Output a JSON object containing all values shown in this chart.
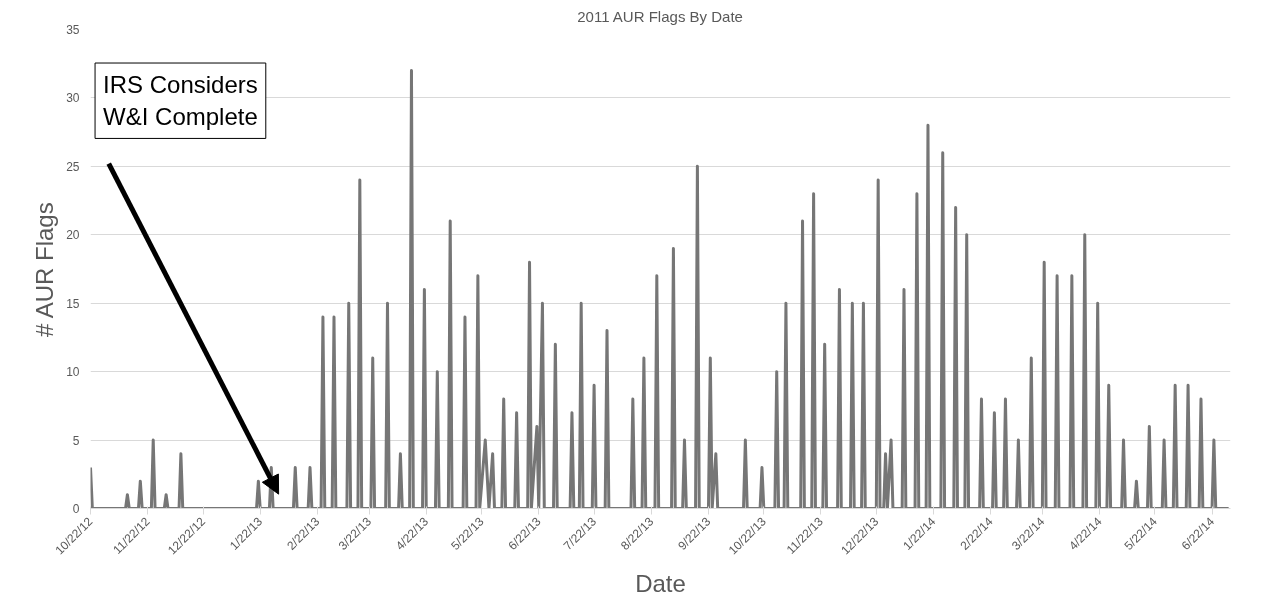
{
  "chart_data": {
    "type": "line",
    "title": "2011 AUR Flags By Date",
    "xlabel": "Date",
    "ylabel": "# AUR Flags",
    "xlim": [
      "2012-10-22",
      "2014-07-02"
    ],
    "ylim": [
      0,
      35
    ],
    "yticks": [
      0,
      5,
      10,
      15,
      20,
      25,
      30,
      35
    ],
    "xticks": [
      {
        "value": "2012-10-22",
        "label": "10/22/12"
      },
      {
        "value": "2012-11-22",
        "label": "11/22/12"
      },
      {
        "value": "2012-12-22",
        "label": "12/22/12"
      },
      {
        "value": "2013-01-22",
        "label": "1/22/13"
      },
      {
        "value": "2013-02-22",
        "label": "2/22/13"
      },
      {
        "value": "2013-03-22",
        "label": "3/22/13"
      },
      {
        "value": "2013-04-22",
        "label": "4/22/13"
      },
      {
        "value": "2013-05-22",
        "label": "5/22/13"
      },
      {
        "value": "2013-06-22",
        "label": "6/22/13"
      },
      {
        "value": "2013-07-22",
        "label": "7/22/13"
      },
      {
        "value": "2013-08-22",
        "label": "8/22/13"
      },
      {
        "value": "2013-09-22",
        "label": "9/22/13"
      },
      {
        "value": "2013-10-22",
        "label": "10/22/13"
      },
      {
        "value": "2013-11-22",
        "label": "11/22/13"
      },
      {
        "value": "2013-12-22",
        "label": "12/22/13"
      },
      {
        "value": "2014-01-22",
        "label": "1/22/14"
      },
      {
        "value": "2014-02-22",
        "label": "2/22/14"
      },
      {
        "value": "2014-03-22",
        "label": "3/22/14"
      },
      {
        "value": "2014-04-22",
        "label": "4/22/14"
      },
      {
        "value": "2014-05-22",
        "label": "5/22/14"
      },
      {
        "value": "2014-06-22",
        "label": "6/22/14"
      }
    ],
    "grid": "y",
    "marker": "none",
    "line_style": "solid",
    "annotations": [
      "IRS Considers\nW&I Complete"
    ],
    "series": [
      {
        "color": "#767676",
        "x": [
          "2012-10-22",
          "2012-10-23",
          "2012-11-10",
          "2012-11-11",
          "2012-11-12",
          "2012-11-17",
          "2012-11-18",
          "2012-11-19",
          "2012-11-24",
          "2012-11-25",
          "2012-11-26",
          "2012-12-01",
          "2012-12-02",
          "2012-12-03",
          "2012-12-09",
          "2012-12-10",
          "2012-12-11",
          "2013-01-20",
          "2013-01-21",
          "2013-01-22",
          "2013-01-27",
          "2013-01-28",
          "2013-01-29",
          "2013-02-09",
          "2013-02-10",
          "2013-02-11",
          "2013-02-17",
          "2013-02-18",
          "2013-02-19",
          "2013-02-24",
          "2013-02-25",
          "2013-02-26",
          "2013-03-02",
          "2013-03-03",
          "2013-03-04",
          "2013-03-10",
          "2013-03-11",
          "2013-03-12",
          "2013-03-16",
          "2013-03-17",
          "2013-03-18",
          "2013-03-23",
          "2013-03-24",
          "2013-03-25",
          "2013-03-31",
          "2013-04-01",
          "2013-04-02",
          "2013-04-07",
          "2013-04-08",
          "2013-04-09",
          "2013-04-13",
          "2013-04-14",
          "2013-04-15",
          "2013-04-20",
          "2013-04-21",
          "2013-04-22",
          "2013-04-27",
          "2013-04-28",
          "2013-04-29",
          "2013-05-04",
          "2013-05-05",
          "2013-05-06",
          "2013-05-12",
          "2013-05-13",
          "2013-05-14",
          "2013-05-19",
          "2013-05-20",
          "2013-05-21",
          "2013-05-24",
          "2013-05-26",
          "2013-05-28",
          "2013-05-29",
          "2013-06-02",
          "2013-06-03",
          "2013-06-04",
          "2013-06-09",
          "2013-06-10",
          "2013-06-11",
          "2013-06-16",
          "2013-06-17",
          "2013-06-18",
          "2013-06-21",
          "2013-06-22",
          "2013-06-24",
          "2013-06-25",
          "2013-06-30",
          "2013-07-01",
          "2013-07-02",
          "2013-07-09",
          "2013-07-10",
          "2013-07-11",
          "2013-07-14",
          "2013-07-15",
          "2013-07-16",
          "2013-07-21",
          "2013-07-22",
          "2013-07-23",
          "2013-07-28",
          "2013-07-29",
          "2013-07-30",
          "2013-08-11",
          "2013-08-12",
          "2013-08-13",
          "2013-08-17",
          "2013-08-18",
          "2013-08-19",
          "2013-08-24",
          "2013-08-25",
          "2013-08-26",
          "2013-09-02",
          "2013-09-03",
          "2013-09-04",
          "2013-09-08",
          "2013-09-09",
          "2013-09-10",
          "2013-09-15",
          "2013-09-16",
          "2013-09-17",
          "2013-09-22",
          "2013-09-23",
          "2013-09-24",
          "2013-09-26",
          "2013-09-27",
          "2013-10-11",
          "2013-10-12",
          "2013-10-13",
          "2013-10-20",
          "2013-10-21",
          "2013-10-22",
          "2013-10-28",
          "2013-10-29",
          "2013-10-30",
          "2013-11-02",
          "2013-11-03",
          "2013-11-04",
          "2013-11-11",
          "2013-11-12",
          "2013-11-13",
          "2013-11-17",
          "2013-11-18",
          "2013-11-19",
          "2013-11-23",
          "2013-11-24",
          "2013-11-25",
          "2013-12-01",
          "2013-12-02",
          "2013-12-03",
          "2013-12-08",
          "2013-12-09",
          "2013-12-10",
          "2013-12-14",
          "2013-12-15",
          "2013-12-16",
          "2013-12-22",
          "2013-12-23",
          "2013-12-24",
          "2013-12-26",
          "2013-12-27",
          "2013-12-28",
          "2013-12-30",
          "2013-12-31",
          "2014-01-05",
          "2014-01-06",
          "2014-01-07",
          "2014-01-12",
          "2014-01-13",
          "2014-01-14",
          "2014-01-18",
          "2014-01-19",
          "2014-01-20",
          "2014-01-26",
          "2014-01-27",
          "2014-01-28",
          "2014-02-02",
          "2014-02-03",
          "2014-02-04",
          "2014-02-08",
          "2014-02-09",
          "2014-02-10",
          "2014-02-16",
          "2014-02-17",
          "2014-02-18",
          "2014-02-23",
          "2014-02-24",
          "2014-02-25",
          "2014-03-01",
          "2014-03-02",
          "2014-03-03",
          "2014-03-08",
          "2014-03-09",
          "2014-03-10",
          "2014-03-15",
          "2014-03-16",
          "2014-03-17",
          "2014-03-22",
          "2014-03-23",
          "2014-03-24",
          "2014-03-29",
          "2014-03-30",
          "2014-03-31",
          "2014-04-06",
          "2014-04-07",
          "2014-04-08",
          "2014-04-13",
          "2014-04-14",
          "2014-04-15",
          "2014-04-20",
          "2014-04-21",
          "2014-04-22",
          "2014-04-26",
          "2014-04-27",
          "2014-04-28",
          "2014-05-04",
          "2014-05-05",
          "2014-05-06",
          "2014-05-11",
          "2014-05-12",
          "2014-05-13",
          "2014-05-18",
          "2014-05-19",
          "2014-05-20",
          "2014-05-26",
          "2014-05-27",
          "2014-05-28",
          "2014-06-01",
          "2014-06-02",
          "2014-06-03",
          "2014-06-08",
          "2014-06-09",
          "2014-06-10",
          "2014-06-15",
          "2014-06-16",
          "2014-06-17",
          "2014-06-22",
          "2014-06-23",
          "2014-06-24",
          "2014-07-01"
        ],
        "values": [
          3,
          0,
          0,
          1,
          0,
          0,
          2,
          0,
          0,
          5,
          0,
          0,
          1,
          0,
          0,
          4,
          0,
          0,
          2,
          0,
          0,
          3,
          0,
          0,
          3,
          0,
          0,
          3,
          0,
          0,
          14,
          0,
          0,
          14,
          0,
          0,
          15,
          0,
          0,
          24,
          0,
          0,
          11,
          0,
          0,
          15,
          0,
          0,
          4,
          0,
          0,
          32,
          0,
          0,
          16,
          0,
          0,
          10,
          0,
          0,
          21,
          0,
          0,
          14,
          0,
          0,
          17,
          0,
          5,
          0,
          4,
          0,
          0,
          8,
          0,
          0,
          7,
          0,
          0,
          18,
          0,
          6,
          0,
          15,
          0,
          0,
          12,
          0,
          0,
          7,
          0,
          0,
          15,
          0,
          0,
          9,
          0,
          0,
          13,
          0,
          0,
          8,
          0,
          0,
          11,
          0,
          0,
          17,
          0,
          0,
          19,
          0,
          0,
          5,
          0,
          0,
          25,
          0,
          0,
          11,
          0,
          4,
          0,
          0,
          5,
          0,
          0,
          3,
          0,
          0,
          10,
          0,
          0,
          15,
          0,
          0,
          21,
          0,
          0,
          23,
          0,
          0,
          12,
          0,
          0,
          16,
          0,
          0,
          15,
          0,
          0,
          15,
          0,
          0,
          24,
          0,
          0,
          4,
          0,
          5,
          0,
          0,
          16,
          0,
          0,
          23,
          0,
          0,
          28,
          0,
          0,
          26,
          0,
          0,
          22,
          0,
          0,
          20,
          0,
          0,
          8,
          0,
          0,
          7,
          0,
          0,
          8,
          0,
          0,
          5,
          0,
          0,
          11,
          0,
          0,
          18,
          0,
          0,
          17,
          0,
          0,
          17,
          0,
          0,
          20,
          0,
          0,
          15,
          0,
          0,
          9,
          0,
          0,
          5,
          0,
          0,
          2,
          0,
          0,
          6,
          0,
          0,
          5,
          0,
          0,
          9,
          0,
          0,
          9,
          0,
          0,
          8,
          0,
          0,
          5,
          0,
          0
        ]
      }
    ]
  }
}
